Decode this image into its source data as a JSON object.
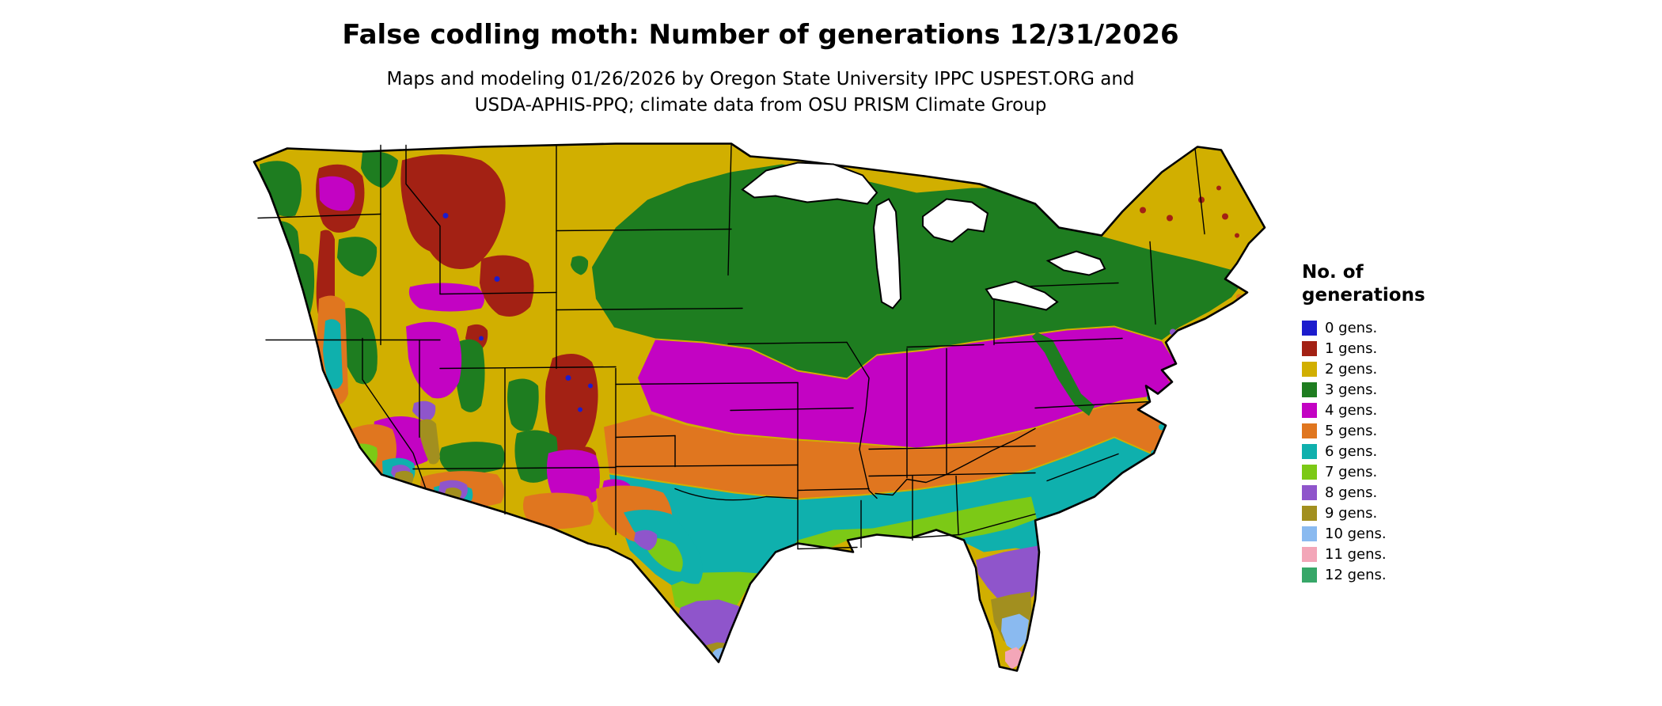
{
  "title": "False codling moth: Number of generations 12/31/2026",
  "subtitle_line1": "Maps and modeling 01/26/2026 by Oregon State University IPPC USPEST.ORG and",
  "subtitle_line2": "USDA-APHIS-PPQ; climate data from OSU PRISM Climate Group",
  "legend": {
    "title_line1": "No. of",
    "title_line2": "generations",
    "items": [
      {
        "label": "0 gens.",
        "color": "#1c1ccd"
      },
      {
        "label": "1 gens.",
        "color": "#a32114"
      },
      {
        "label": "2 gens.",
        "color": "#d1af00"
      },
      {
        "label": "3 gens.",
        "color": "#1e7d20"
      },
      {
        "label": "4 gens.",
        "color": "#c303c3"
      },
      {
        "label": "5 gens.",
        "color": "#e0761f"
      },
      {
        "label": "6 gens.",
        "color": "#0fb0ad"
      },
      {
        "label": "7 gens.",
        "color": "#7cc916"
      },
      {
        "label": "8 gens.",
        "color": "#8f55cb"
      },
      {
        "label": "9 gens.",
        "color": "#a28f1f"
      },
      {
        "label": "10 gens.",
        "color": "#8abaf0"
      },
      {
        "label": "11 gens.",
        "color": "#f3a6b8"
      },
      {
        "label": "12 gens.",
        "color": "#37a768"
      }
    ]
  },
  "map": {
    "type": "choropleth-raster",
    "region": "Continental United States",
    "pattern_summary": [
      "Northern tier and mountain west mostly 1-2 generations with 0-gen specks at high peaks",
      "Upper Midwest, Northeast and Appalachians 3 generations",
      "Central belt (Kansas to Virginia) 4 generations",
      "Oklahoma, Arkansas, Tennessee, Carolinas 5 generations",
      "Deep South band 6 generations, Gulf coast 7 generations",
      "South Texas and central Florida 8-9 generations",
      "Far south Texas and south Florida 10-12 generations"
    ]
  }
}
